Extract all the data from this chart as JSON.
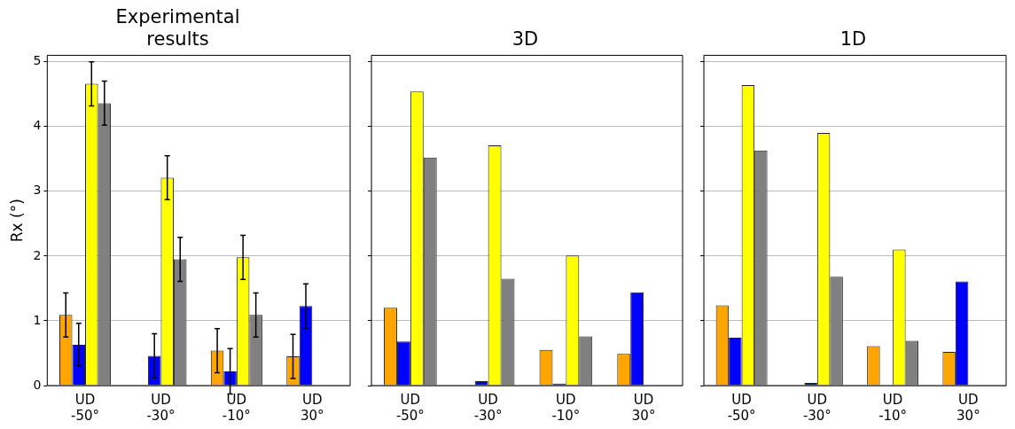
{
  "chart_data": [
    {
      "type": "bar",
      "title": "Experimental\nresults",
      "ylabel": "Rx (°)",
      "categories": [
        "UD -50°",
        "UD -30°",
        "UD -10°",
        "UD 30°"
      ],
      "ylim": [
        0,
        5.1
      ],
      "yticks": [
        0,
        1,
        2,
        3,
        4,
        5
      ],
      "grid": "y",
      "series": [
        {
          "color": "#ffa500",
          "values": [
            1.09,
            null,
            0.54,
            0.45
          ],
          "errors": [
            0.34,
            null,
            0.34,
            0.34
          ]
        },
        {
          "color": "#0000ff",
          "values": [
            0.63,
            0.46,
            0.22,
            1.23
          ],
          "errors": [
            0.33,
            0.34,
            0.35,
            0.34
          ]
        },
        {
          "color": "#ffff00",
          "values": [
            4.66,
            3.21,
            1.98,
            null
          ],
          "errors": [
            0.34,
            0.34,
            0.34,
            null
          ]
        },
        {
          "color": "#808080",
          "values": [
            4.36,
            1.95,
            1.09,
            null
          ],
          "errors": [
            0.34,
            0.34,
            0.34,
            null
          ]
        }
      ]
    },
    {
      "type": "bar",
      "title": "3D",
      "categories": [
        "UD -50°",
        "UD -30°",
        "UD -10°",
        "UD 30°"
      ],
      "ylim": [
        0,
        5.1
      ],
      "yticks": [
        0,
        1,
        2,
        3,
        4,
        5
      ],
      "grid": "y",
      "tick_labels": "x",
      "series": [
        {
          "color": "#ffa500",
          "values": [
            1.2,
            null,
            0.55,
            0.49
          ]
        },
        {
          "color": "#0000ff",
          "values": [
            0.68,
            0.07,
            0.03,
            1.44
          ]
        },
        {
          "color": "#ffff00",
          "values": [
            4.54,
            3.71,
            2.01,
            null
          ]
        },
        {
          "color": "#808080",
          "values": [
            3.52,
            1.65,
            0.76,
            null
          ]
        }
      ]
    },
    {
      "type": "bar",
      "title": "1D",
      "categories": [
        "UD -50°",
        "UD -30°",
        "UD -10°",
        "UD 30°"
      ],
      "ylim": [
        0,
        5.1
      ],
      "yticks": [
        0,
        1,
        2,
        3,
        4,
        5
      ],
      "grid": "y",
      "tick_labels": "x",
      "series": [
        {
          "color": "#ffa500",
          "values": [
            1.24,
            null,
            0.61,
            0.52
          ]
        },
        {
          "color": "#0000ff",
          "values": [
            0.74,
            0.04,
            null,
            1.61
          ]
        },
        {
          "color": "#ffff00",
          "values": [
            4.64,
            3.9,
            2.1,
            null
          ]
        },
        {
          "color": "#808080",
          "values": [
            3.63,
            1.68,
            0.69,
            null
          ]
        }
      ]
    }
  ]
}
